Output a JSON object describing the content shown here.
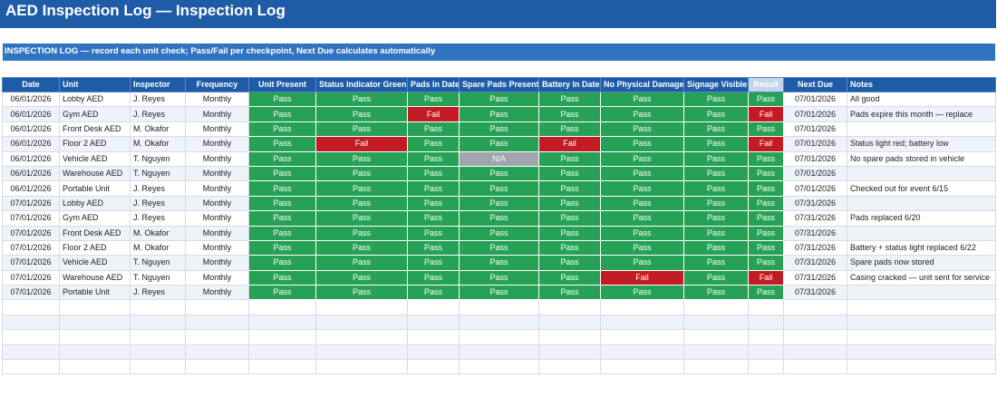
{
  "title": "AED Inspection Log — Inspection Log",
  "banner": "INSPECTION LOG — record each unit check; Pass/Fail per checkpoint, Next Due calculates automatically",
  "colors": {
    "title_bg": "#1f5ca8",
    "banner_bg": "#2f74c2",
    "pass": "#26a155",
    "fail": "#c21b24",
    "na": "#a0a4ad"
  },
  "columns": [
    "Date",
    "Unit",
    "Inspector",
    "Frequency",
    "Unit Present",
    "Status Indicator Green",
    "Pads In Date",
    "Spare Pads Present",
    "Battery In Date",
    "No Physical Damage",
    "Signage Visible",
    "Result",
    "Next Due",
    "Notes"
  ],
  "rows": [
    [
      "06/01/2026",
      "Lobby AED",
      "J. Reyes",
      "Monthly",
      "Pass",
      "Pass",
      "Pass",
      "Pass",
      "Pass",
      "Pass",
      "Pass",
      "Pass",
      "07/01/2026",
      "All good"
    ],
    [
      "06/01/2026",
      "Gym AED",
      "J. Reyes",
      "Monthly",
      "Pass",
      "Pass",
      "Fail",
      "Pass",
      "Pass",
      "Pass",
      "Pass",
      "Fail",
      "07/01/2026",
      "Pads expire this month — replace"
    ],
    [
      "06/01/2026",
      "Front Desk AED",
      "M. Okafor",
      "Monthly",
      "Pass",
      "Pass",
      "Pass",
      "Pass",
      "Pass",
      "Pass",
      "Pass",
      "Pass",
      "07/01/2026",
      ""
    ],
    [
      "06/01/2026",
      "Floor 2 AED",
      "M. Okafor",
      "Monthly",
      "Pass",
      "Fail",
      "Pass",
      "Pass",
      "Fail",
      "Pass",
      "Pass",
      "Fail",
      "07/01/2026",
      "Status light red; battery low"
    ],
    [
      "06/01/2026",
      "Vehicle AED",
      "T. Nguyen",
      "Monthly",
      "Pass",
      "Pass",
      "Pass",
      "N/A",
      "Pass",
      "Pass",
      "Pass",
      "Pass",
      "07/01/2026",
      "No spare pads stored in vehicle"
    ],
    [
      "06/01/2026",
      "Warehouse AED",
      "T. Nguyen",
      "Monthly",
      "Pass",
      "Pass",
      "Pass",
      "Pass",
      "Pass",
      "Pass",
      "Pass",
      "Pass",
      "07/01/2026",
      ""
    ],
    [
      "06/01/2026",
      "Portable Unit",
      "J. Reyes",
      "Monthly",
      "Pass",
      "Pass",
      "Pass",
      "Pass",
      "Pass",
      "Pass",
      "Pass",
      "Pass",
      "07/01/2026",
      "Checked out for event 6/15"
    ],
    [
      "07/01/2026",
      "Lobby AED",
      "J. Reyes",
      "Monthly",
      "Pass",
      "Pass",
      "Pass",
      "Pass",
      "Pass",
      "Pass",
      "Pass",
      "Pass",
      "07/31/2026",
      ""
    ],
    [
      "07/01/2026",
      "Gym AED",
      "J. Reyes",
      "Monthly",
      "Pass",
      "Pass",
      "Pass",
      "Pass",
      "Pass",
      "Pass",
      "Pass",
      "Pass",
      "07/31/2026",
      "Pads replaced 6/20"
    ],
    [
      "07/01/2026",
      "Front Desk AED",
      "M. Okafor",
      "Monthly",
      "Pass",
      "Pass",
      "Pass",
      "Pass",
      "Pass",
      "Pass",
      "Pass",
      "Pass",
      "07/31/2026",
      ""
    ],
    [
      "07/01/2026",
      "Floor 2 AED",
      "M. Okafor",
      "Monthly",
      "Pass",
      "Pass",
      "Pass",
      "Pass",
      "Pass",
      "Pass",
      "Pass",
      "Pass",
      "07/31/2026",
      "Battery + status light replaced 6/22"
    ],
    [
      "07/01/2026",
      "Vehicle AED",
      "T. Nguyen",
      "Monthly",
      "Pass",
      "Pass",
      "Pass",
      "Pass",
      "Pass",
      "Pass",
      "Pass",
      "Pass",
      "07/31/2026",
      "Spare pads now stored"
    ],
    [
      "07/01/2026",
      "Warehouse AED",
      "T. Nguyen",
      "Monthly",
      "Pass",
      "Pass",
      "Pass",
      "Pass",
      "Pass",
      "Fail",
      "Pass",
      "Fail",
      "07/31/2026",
      "Casing cracked — unit sent for service"
    ],
    [
      "07/01/2026",
      "Portable Unit",
      "J. Reyes",
      "Monthly",
      "Pass",
      "Pass",
      "Pass",
      "Pass",
      "Pass",
      "Pass",
      "Pass",
      "Pass",
      "07/31/2026",
      ""
    ]
  ]
}
